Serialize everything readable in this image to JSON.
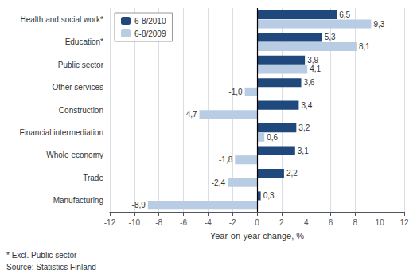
{
  "chart_data": {
    "type": "bar",
    "orientation": "horizontal",
    "categories": [
      "Health and social work*",
      "Education*",
      "Public sector",
      "Other services",
      "Construction",
      "Financial intermediation",
      "Whole economy",
      "Trade",
      "Manufacturing"
    ],
    "series": [
      {
        "name": "6-8/2010",
        "color": "#1F497D",
        "values": [
          6.5,
          5.3,
          3.9,
          3.6,
          3.4,
          3.2,
          3.1,
          2.2,
          0.3
        ],
        "value_labels": [
          "6,5",
          "5,3",
          "3,9",
          "3,6",
          "3,4",
          "3,2",
          "3,1",
          "2,2",
          "0,3"
        ]
      },
      {
        "name": "6-8/2009",
        "color": "#B8CCE4",
        "values": [
          9.3,
          8.1,
          4.1,
          -1.0,
          -4.7,
          0.6,
          -1.8,
          -2.4,
          -8.9
        ],
        "value_labels": [
          "9,3",
          "8,1",
          "4,1",
          "-1,0",
          "-4,7",
          "0,6",
          "-1,8",
          "-2,4",
          "-8,9"
        ]
      }
    ],
    "xlabel": "Year-on-year change, %",
    "annotations": [
      "* Excl. Public sector",
      "Source: Statistics Finland"
    ],
    "xlim": [
      -12,
      12
    ],
    "xticks": [
      -12,
      -10,
      -8,
      -6,
      -4,
      -2,
      0,
      2,
      4,
      6,
      8,
      10,
      12
    ],
    "grid": true,
    "legend": "upper left",
    "data_labels": true
  }
}
